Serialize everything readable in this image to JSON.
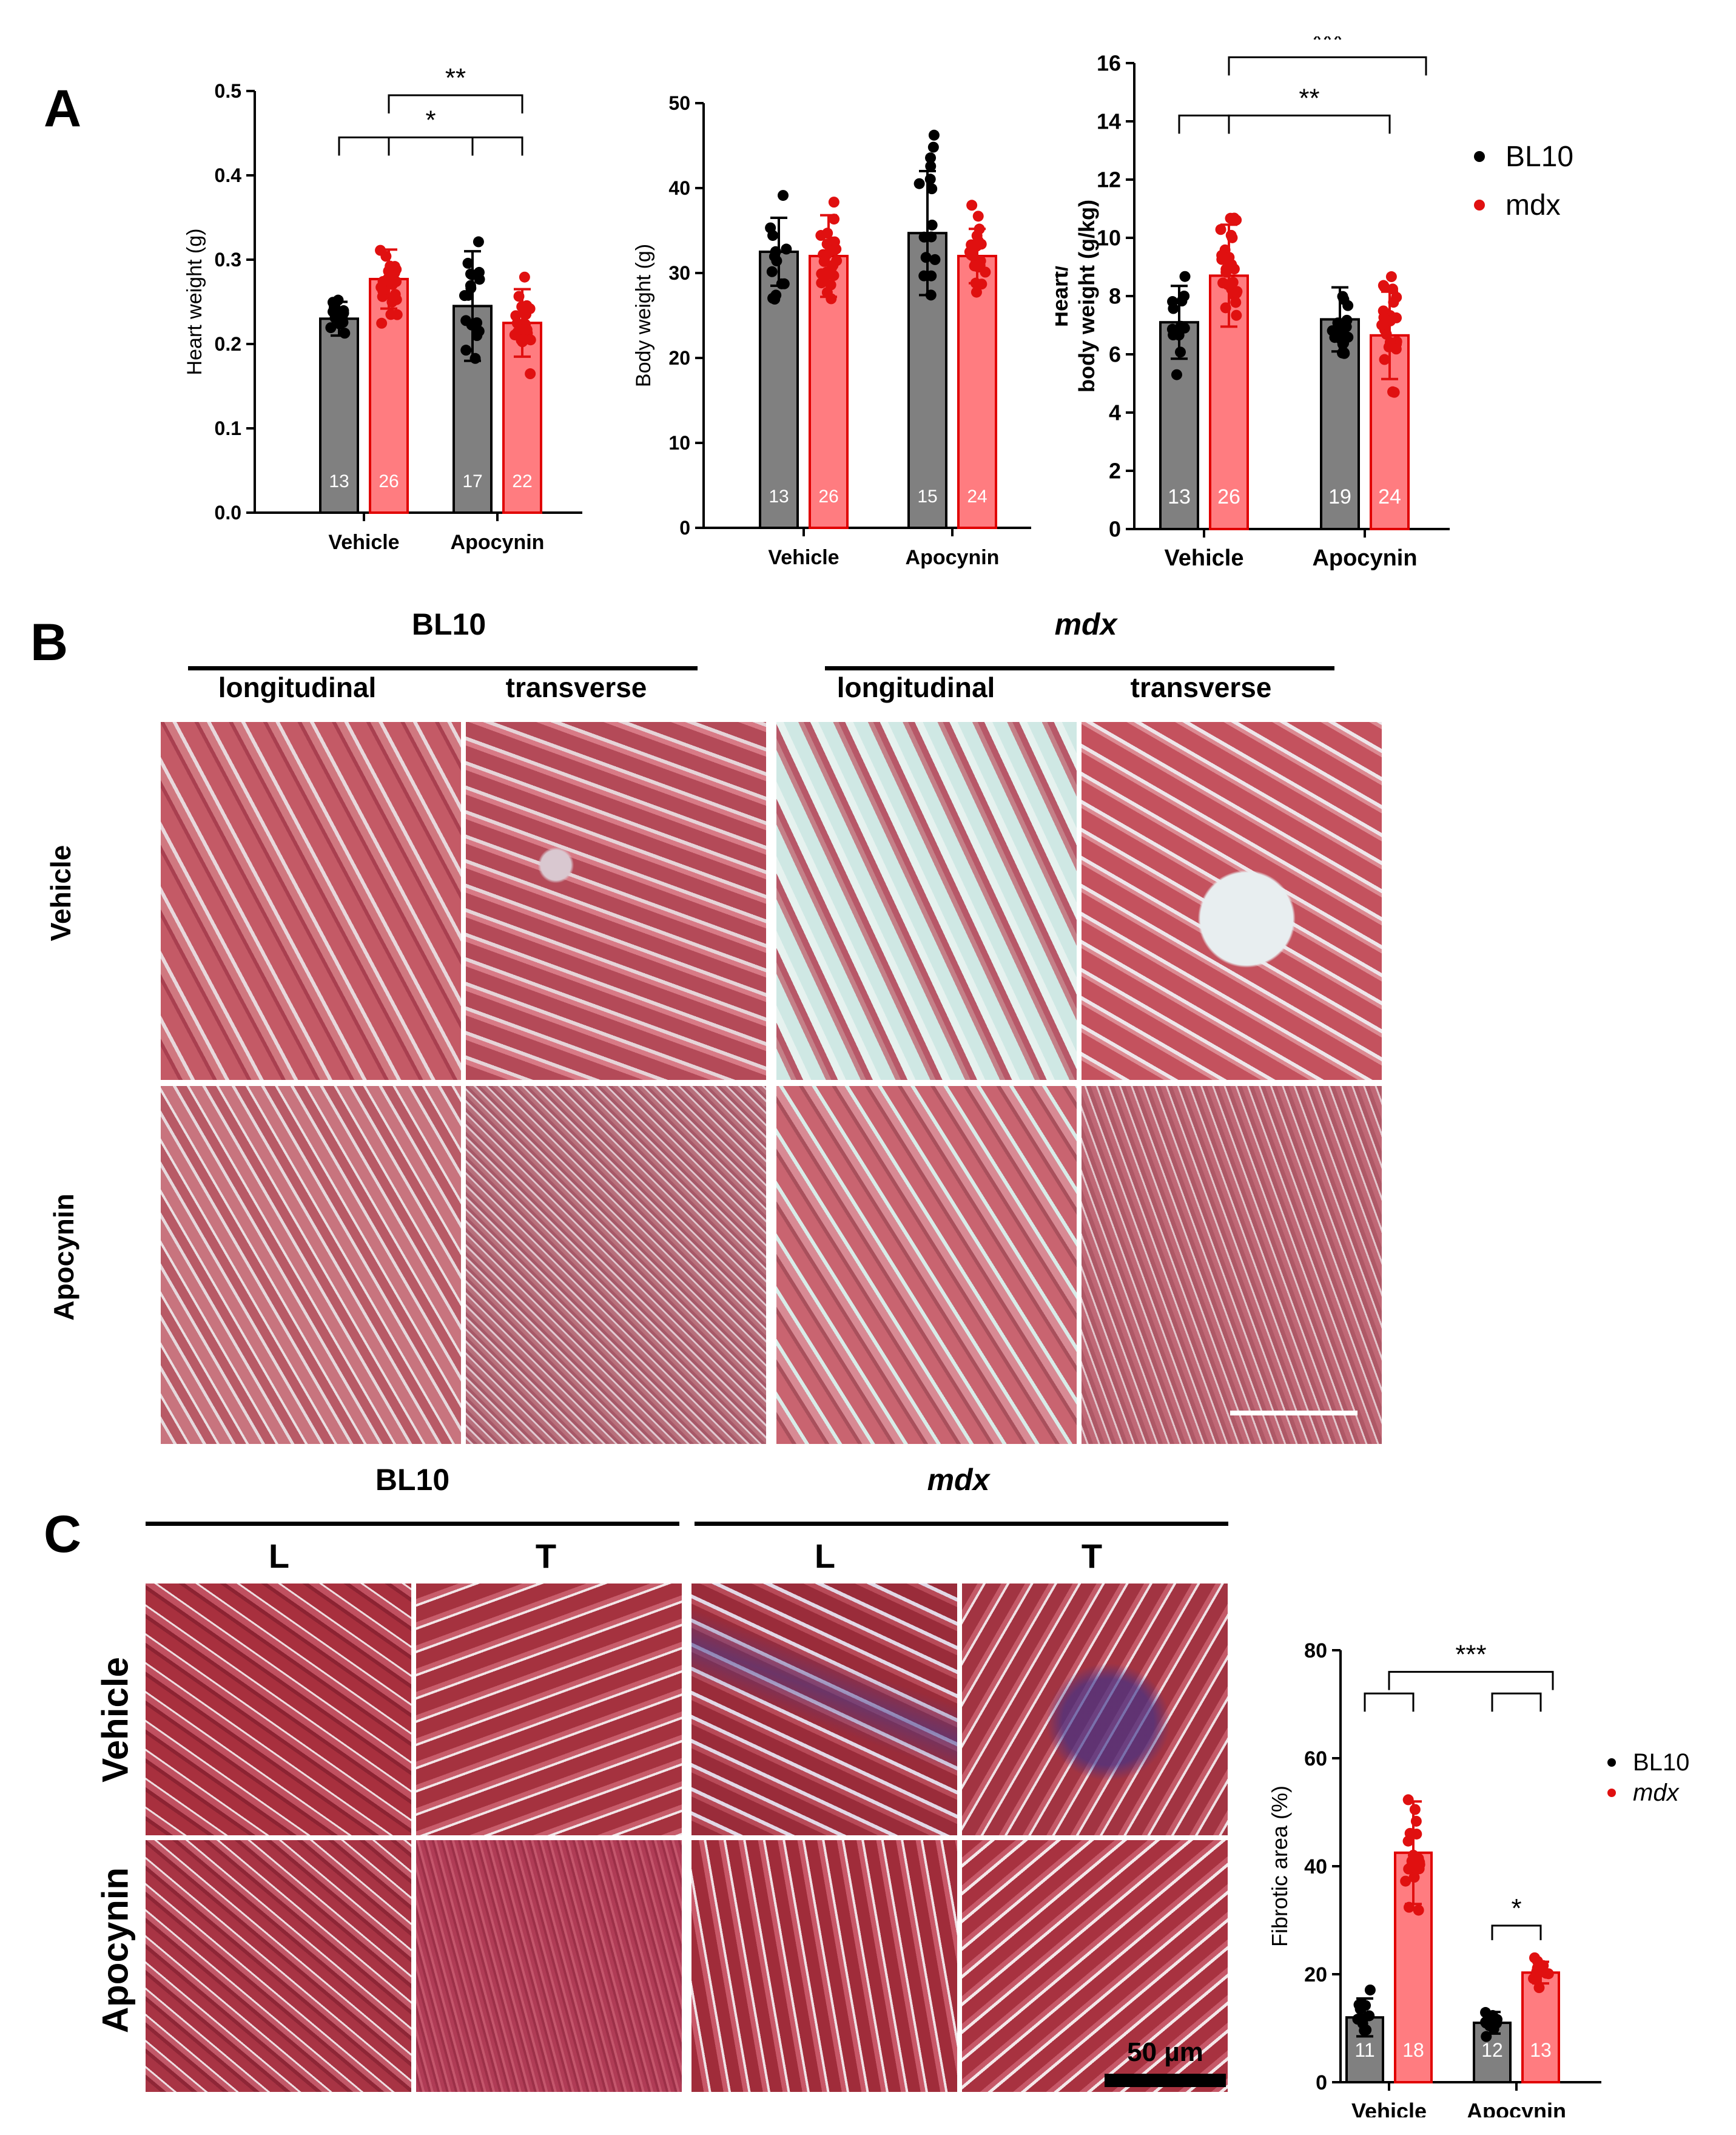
{
  "panels": {
    "A": {
      "letter": "A"
    },
    "B": {
      "letter": "B",
      "groups": [
        "BL10",
        "mdx"
      ],
      "orientations": [
        "longitudinal",
        "transverse",
        "longitudinal",
        "transverse"
      ],
      "rows": [
        "Vehicle",
        "Apocynin"
      ]
    },
    "C": {
      "letter": "C",
      "groups": [
        "BL10",
        "mdx"
      ],
      "orientations": [
        "L",
        "T",
        "L",
        "T"
      ],
      "rows": [
        "Vehicle",
        "Apocynin"
      ],
      "scale_bar": "50 µm"
    }
  },
  "legend": {
    "bl10": "BL10",
    "mdx": "mdx"
  },
  "colors": {
    "bl10_bar": "#808080",
    "mdx_bar": "#ff7c80",
    "bl10_dot": "#000000",
    "mdx_dot": "#e01010",
    "mdx_edge": "#e00000"
  },
  "chart_data": [
    {
      "type": "bar",
      "id": "heart",
      "ylabel": "Heart weight (g)",
      "ylim": [
        0,
        0.5
      ],
      "yticks": [
        "0.0",
        "0.1",
        "0.2",
        "0.3",
        "0.4",
        "0.5"
      ],
      "categories": [
        "Vehicle",
        "Apocynin"
      ],
      "series": [
        {
          "name": "BL10",
          "values": [
            0.23,
            0.245
          ],
          "sd": [
            0.02,
            0.065
          ],
          "n": [
            "13",
            "17"
          ]
        },
        {
          "name": "mdx",
          "values": [
            0.277,
            0.225
          ],
          "sd": [
            0.035,
            0.04
          ],
          "n": [
            "26",
            "22"
          ]
        }
      ],
      "significance": [
        "*",
        "**"
      ]
    },
    {
      "type": "bar",
      "id": "body",
      "ylabel": "Body weight (g)",
      "ylim": [
        0,
        50
      ],
      "yticks": [
        "0",
        "10",
        "20",
        "30",
        "40",
        "50"
      ],
      "categories": [
        "Vehicle",
        "Apocynin"
      ],
      "series": [
        {
          "name": "BL10",
          "values": [
            32.5,
            34.7
          ],
          "sd": [
            4.0,
            7.3
          ],
          "n": [
            "13",
            "15"
          ]
        },
        {
          "name": "mdx",
          "values": [
            32.0,
            32.0
          ],
          "sd": [
            4.8,
            3.2
          ],
          "n": [
            "26",
            "24"
          ]
        }
      ],
      "significance": []
    },
    {
      "type": "bar",
      "id": "ratio",
      "ylabel_lines": [
        "Heart/",
        "body weight (g/kg)"
      ],
      "ylim": [
        0,
        16
      ],
      "yticks": [
        "0",
        "2",
        "4",
        "6",
        "8",
        "10",
        "12",
        "14",
        "16"
      ],
      "categories": [
        "Vehicle",
        "Apocynin"
      ],
      "series": [
        {
          "name": "BL10",
          "values": [
            7.1,
            7.2
          ],
          "sd": [
            1.25,
            1.1
          ],
          "n": [
            "13",
            "19"
          ]
        },
        {
          "name": "mdx",
          "values": [
            8.7,
            6.65
          ],
          "sd": [
            1.75,
            1.5
          ],
          "n": [
            "26",
            "24"
          ]
        }
      ],
      "significance": [
        "**",
        "***"
      ]
    },
    {
      "type": "bar",
      "id": "fibrotic",
      "ylabel": "Fibrotic area (%)",
      "ylim": [
        0,
        80
      ],
      "yticks": [
        "0",
        "20",
        "40",
        "60",
        "80"
      ],
      "categories": [
        "Vehicle",
        "Apocynin"
      ],
      "series": [
        {
          "name": "BL10",
          "values": [
            12,
            11
          ],
          "sd": [
            3.5,
            2.0
          ],
          "n": [
            "11",
            "12"
          ]
        },
        {
          "name": "mdx",
          "values": [
            42.5,
            20.3
          ],
          "sd": [
            9.5,
            2.0
          ],
          "n": [
            "18",
            "13"
          ]
        }
      ],
      "significance": [
        "***",
        "*"
      ]
    }
  ]
}
